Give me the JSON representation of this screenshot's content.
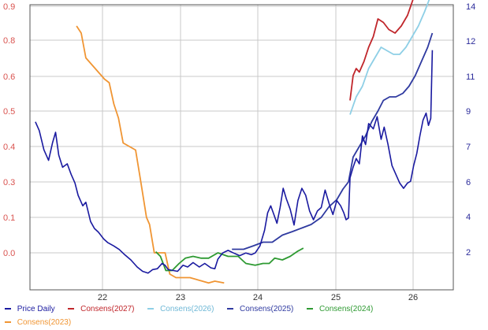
{
  "chart_data": {
    "type": "line",
    "title": "",
    "x_ticks": [
      "22",
      "23",
      "24",
      "25",
      "26"
    ],
    "x_range": [
      21.0,
      26.45
    ],
    "y_left_ticks": [
      "0.9",
      "0.8",
      "0.6",
      "0.5",
      "0.4",
      "0.3",
      "0.1",
      "0.0"
    ],
    "y_right_ticks": [
      "14",
      "12",
      "11",
      "9",
      "7",
      "6",
      "4",
      "2"
    ],
    "grid": true,
    "legend_position": "bottom",
    "colors": {
      "price": "#1a1aa0",
      "c2027": "#c0262b",
      "c2026": "#8ecfe6",
      "c2025": "#2f3aa0",
      "c2024": "#2e9a32",
      "c2023": "#f09533",
      "axis_left": "#d9534f",
      "axis_right": "#2a2a9a",
      "grid": "#c8c8c8"
    },
    "series": [
      {
        "name": "Price Daily",
        "axis": "right",
        "color_key": "price",
        "points": [
          [
            21.07,
            9.4
          ],
          [
            21.12,
            8.9
          ],
          [
            21.18,
            7.8
          ],
          [
            21.24,
            7.2
          ],
          [
            21.29,
            8.2
          ],
          [
            21.33,
            8.8
          ],
          [
            21.37,
            7.5
          ],
          [
            21.42,
            6.8
          ],
          [
            21.48,
            7.0
          ],
          [
            21.53,
            6.4
          ],
          [
            21.58,
            5.9
          ],
          [
            21.62,
            5.2
          ],
          [
            21.68,
            4.6
          ],
          [
            21.72,
            4.8
          ],
          [
            21.78,
            3.7
          ],
          [
            21.83,
            3.3
          ],
          [
            21.88,
            3.1
          ],
          [
            21.95,
            2.7
          ],
          [
            22.0,
            2.5
          ],
          [
            22.08,
            2.3
          ],
          [
            22.15,
            2.1
          ],
          [
            22.22,
            1.8
          ],
          [
            22.3,
            1.5
          ],
          [
            22.38,
            1.1
          ],
          [
            22.45,
            0.85
          ],
          [
            22.52,
            0.75
          ],
          [
            22.58,
            0.95
          ],
          [
            22.64,
            1.0
          ],
          [
            22.7,
            1.3
          ],
          [
            22.74,
            1.2
          ],
          [
            22.78,
            0.95
          ],
          [
            22.84,
            0.9
          ],
          [
            22.9,
            0.85
          ],
          [
            22.97,
            1.2
          ],
          [
            23.03,
            1.1
          ],
          [
            23.1,
            1.35
          ],
          [
            23.18,
            1.1
          ],
          [
            23.25,
            1.3
          ],
          [
            23.33,
            1.05
          ],
          [
            23.38,
            1.0
          ],
          [
            23.42,
            1.55
          ],
          [
            23.48,
            1.9
          ],
          [
            23.55,
            2.05
          ],
          [
            23.62,
            1.9
          ],
          [
            23.7,
            1.75
          ],
          [
            23.78,
            1.9
          ],
          [
            23.85,
            1.8
          ],
          [
            23.9,
            1.9
          ],
          [
            23.96,
            2.3
          ],
          [
            24.02,
            3.2
          ],
          [
            24.06,
            4.2
          ],
          [
            24.1,
            4.6
          ],
          [
            24.14,
            4.1
          ],
          [
            24.18,
            3.6
          ],
          [
            24.22,
            4.5
          ],
          [
            24.26,
            5.6
          ],
          [
            24.3,
            5.0
          ],
          [
            24.35,
            4.4
          ],
          [
            24.4,
            3.5
          ],
          [
            24.45,
            4.9
          ],
          [
            24.5,
            5.6
          ],
          [
            24.55,
            5.2
          ],
          [
            24.6,
            4.3
          ],
          [
            24.65,
            3.8
          ],
          [
            24.7,
            4.3
          ],
          [
            24.75,
            4.5
          ],
          [
            24.8,
            5.5
          ],
          [
            24.86,
            4.6
          ],
          [
            24.9,
            4.1
          ],
          [
            24.95,
            4.9
          ],
          [
            25.0,
            4.6
          ],
          [
            25.04,
            4.2
          ],
          [
            25.07,
            3.8
          ],
          [
            25.1,
            3.9
          ],
          [
            25.12,
            6.2
          ],
          [
            25.16,
            6.8
          ],
          [
            25.2,
            7.3
          ],
          [
            25.24,
            7.0
          ],
          [
            25.28,
            8.6
          ],
          [
            25.32,
            8.1
          ],
          [
            25.36,
            9.3
          ],
          [
            25.42,
            9.0
          ],
          [
            25.47,
            9.7
          ],
          [
            25.52,
            8.4
          ],
          [
            25.56,
            9.1
          ],
          [
            25.61,
            8.1
          ],
          [
            25.66,
            6.9
          ],
          [
            25.71,
            6.4
          ],
          [
            25.76,
            5.9
          ],
          [
            25.81,
            5.6
          ],
          [
            25.86,
            5.9
          ],
          [
            25.9,
            6.0
          ],
          [
            25.94,
            6.9
          ],
          [
            25.98,
            7.6
          ],
          [
            26.02,
            8.6
          ],
          [
            26.06,
            9.5
          ],
          [
            26.1,
            9.9
          ],
          [
            26.13,
            9.2
          ],
          [
            26.16,
            9.6
          ],
          [
            26.18,
            13.5
          ]
        ]
      },
      {
        "name": "Consens(2027)",
        "axis": "left",
        "color_key": "c2027",
        "points": [
          [
            25.12,
            0.43
          ],
          [
            25.16,
            0.5
          ],
          [
            25.2,
            0.52
          ],
          [
            25.24,
            0.51
          ],
          [
            25.3,
            0.54
          ],
          [
            25.36,
            0.58
          ],
          [
            25.42,
            0.61
          ],
          [
            25.48,
            0.66
          ],
          [
            25.55,
            0.65
          ],
          [
            25.62,
            0.63
          ],
          [
            25.7,
            0.62
          ],
          [
            25.78,
            0.64
          ],
          [
            25.86,
            0.67
          ],
          [
            25.94,
            0.72
          ],
          [
            26.02,
            0.78
          ],
          [
            26.1,
            0.82
          ],
          [
            26.15,
            0.86
          ],
          [
            26.18,
            0.87
          ]
        ]
      },
      {
        "name": "Consens(2026)",
        "axis": "left",
        "color_key": "c2026",
        "points": [
          [
            25.12,
            0.39
          ],
          [
            25.2,
            0.44
          ],
          [
            25.28,
            0.47
          ],
          [
            25.36,
            0.52
          ],
          [
            25.44,
            0.55
          ],
          [
            25.52,
            0.58
          ],
          [
            25.6,
            0.57
          ],
          [
            25.68,
            0.56
          ],
          [
            25.76,
            0.56
          ],
          [
            25.84,
            0.58
          ],
          [
            25.92,
            0.61
          ],
          [
            26.0,
            0.64
          ],
          [
            26.08,
            0.68
          ],
          [
            26.15,
            0.72
          ],
          [
            26.18,
            0.75
          ]
        ]
      },
      {
        "name": "Consens(2025)",
        "axis": "left",
        "color_key": "c2025",
        "points": [
          [
            23.6,
            0.01
          ],
          [
            23.75,
            0.01
          ],
          [
            23.88,
            0.02
          ],
          [
            24.0,
            0.03
          ],
          [
            24.12,
            0.03
          ],
          [
            24.25,
            0.05
          ],
          [
            24.38,
            0.06
          ],
          [
            24.5,
            0.07
          ],
          [
            24.62,
            0.08
          ],
          [
            24.75,
            0.1
          ],
          [
            24.85,
            0.13
          ],
          [
            24.95,
            0.15
          ],
          [
            25.03,
            0.18
          ],
          [
            25.1,
            0.2
          ],
          [
            25.16,
            0.27
          ],
          [
            25.24,
            0.3
          ],
          [
            25.32,
            0.33
          ],
          [
            25.4,
            0.37
          ],
          [
            25.48,
            0.4
          ],
          [
            25.55,
            0.43
          ],
          [
            25.63,
            0.44
          ],
          [
            25.71,
            0.44
          ],
          [
            25.8,
            0.45
          ],
          [
            25.88,
            0.47
          ],
          [
            25.96,
            0.5
          ],
          [
            26.04,
            0.54
          ],
          [
            26.12,
            0.58
          ],
          [
            26.18,
            0.62
          ]
        ]
      },
      {
        "name": "Consens(2024)",
        "axis": "left",
        "color_key": "c2024",
        "points": [
          [
            22.62,
            0.003
          ],
          [
            22.68,
            -0.01
          ],
          [
            22.75,
            -0.05
          ],
          [
            22.83,
            -0.05
          ],
          [
            22.92,
            -0.03
          ],
          [
            23.0,
            -0.015
          ],
          [
            23.1,
            -0.01
          ],
          [
            23.2,
            -0.015
          ],
          [
            23.3,
            -0.015
          ],
          [
            23.42,
            0.0
          ],
          [
            23.55,
            -0.01
          ],
          [
            23.68,
            -0.01
          ],
          [
            23.78,
            -0.03
          ],
          [
            23.9,
            -0.035
          ],
          [
            24.0,
            -0.03
          ],
          [
            24.08,
            -0.03
          ],
          [
            24.15,
            -0.015
          ],
          [
            24.25,
            -0.02
          ],
          [
            24.35,
            -0.01
          ],
          [
            24.45,
            0.005
          ],
          [
            24.52,
            0.013
          ]
        ]
      },
      {
        "name": "Consens(2023)",
        "axis": "left",
        "color_key": "c2023",
        "points": [
          [
            21.6,
            0.64
          ],
          [
            21.66,
            0.62
          ],
          [
            21.72,
            0.55
          ],
          [
            21.8,
            0.53
          ],
          [
            21.88,
            0.51
          ],
          [
            21.96,
            0.49
          ],
          [
            22.02,
            0.48
          ],
          [
            22.08,
            0.42
          ],
          [
            22.14,
            0.38
          ],
          [
            22.2,
            0.31
          ],
          [
            22.28,
            0.3
          ],
          [
            22.36,
            0.29
          ],
          [
            22.42,
            0.21
          ],
          [
            22.5,
            0.1
          ],
          [
            22.54,
            0.08
          ],
          [
            22.6,
            0.0
          ],
          [
            22.68,
            0.0
          ],
          [
            22.74,
            0.0
          ],
          [
            22.8,
            -0.06
          ],
          [
            22.88,
            -0.07
          ],
          [
            22.96,
            -0.07
          ],
          [
            23.06,
            -0.07
          ],
          [
            23.14,
            -0.075
          ],
          [
            23.22,
            -0.08
          ],
          [
            23.3,
            -0.085
          ],
          [
            23.38,
            -0.08
          ],
          [
            23.5,
            -0.085
          ]
        ]
      }
    ]
  }
}
